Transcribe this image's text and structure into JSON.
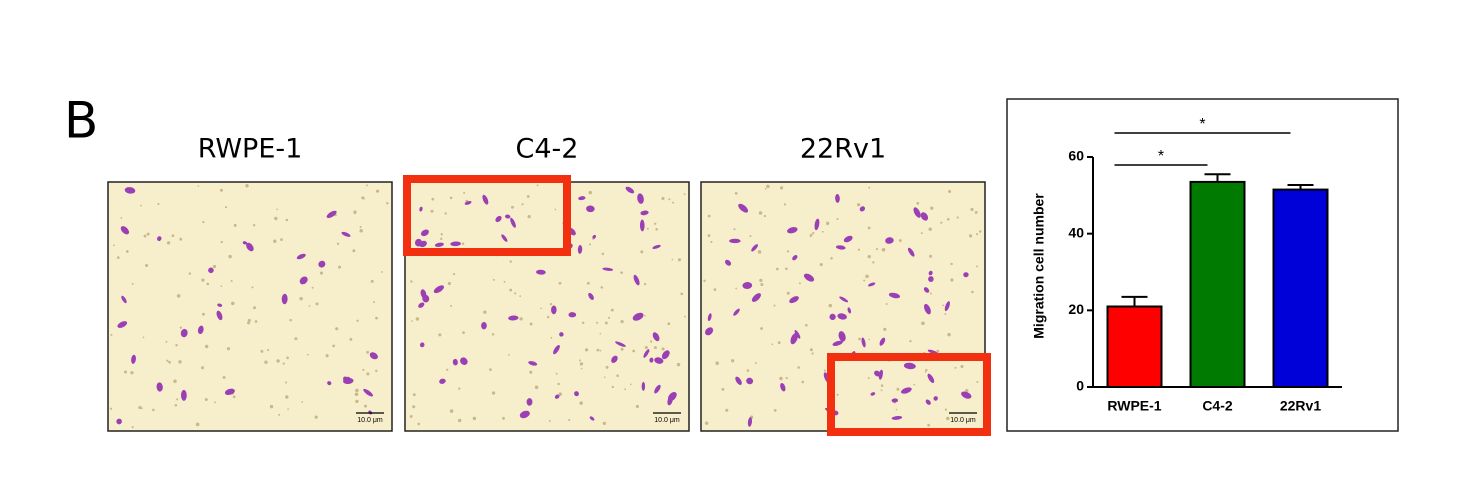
{
  "panel_label": "B",
  "images": [
    {
      "label": "RWPE-1",
      "scale_bar": "10.0 μm"
    },
    {
      "label": "C4-2",
      "scale_bar": "10.0 μm"
    },
    {
      "label": "22Rv1",
      "scale_bar": "10.0 μm"
    }
  ],
  "chart_data": {
    "type": "bar",
    "ylabel": "Migration cell number",
    "categories": [
      "RWPE-1",
      "C4-2",
      "22Rv1"
    ],
    "values": [
      21,
      53.5,
      51.5
    ],
    "errors": [
      2.5,
      2,
      1.2
    ],
    "colors": [
      "#ff0000",
      "#007a00",
      "#0000d8"
    ],
    "ylim": [
      0,
      60
    ],
    "yticks": [
      0,
      20,
      40,
      60
    ],
    "significance": [
      {
        "between": [
          "RWPE-1",
          "C4-2"
        ],
        "label": "*"
      },
      {
        "between": [
          "RWPE-1",
          "22Rv1"
        ],
        "label": "*"
      }
    ]
  }
}
